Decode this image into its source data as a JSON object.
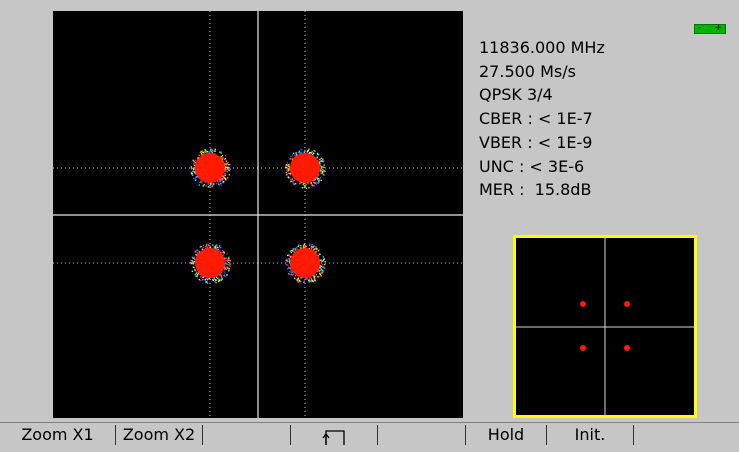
{
  "measurement": {
    "frequency": "11836.000 MHz",
    "symbol_rate": "27.500 Ms/s",
    "modulation": "QPSK 3/4",
    "cber": "CBER : < 1E-7",
    "vber": "VBER : < 1E-9",
    "unc": "UNC : < 3E-6",
    "mer": "MER :  15.8dB"
  },
  "level_indicator": {
    "minus": "-",
    "plus": "+"
  },
  "softkeys": {
    "zoom_x1": "Zoom X1",
    "zoom_x2": "Zoom X2",
    "blank_1": "",
    "return_icon": "return-icon",
    "blank_2": "",
    "hold": "Hold",
    "init": "Init.",
    "blank_3": ""
  },
  "colors": {
    "background": "#c6c6c6",
    "plot_bg": "#000000",
    "symbol_core": "#ff1a00",
    "zoom_frame": "#ffff00",
    "level_bar": "#00b400"
  }
}
